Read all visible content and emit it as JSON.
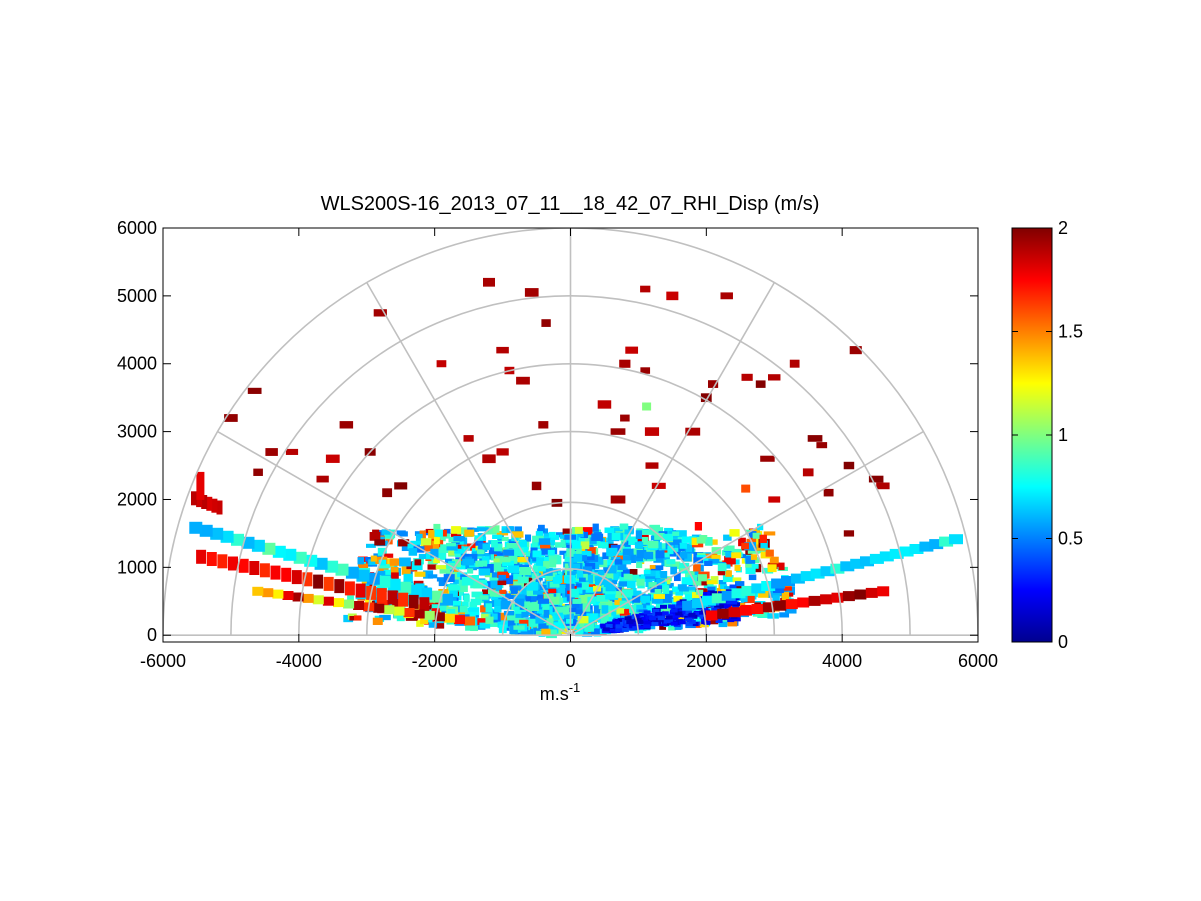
{
  "chart_data": {
    "type": "heatmap",
    "subtype": "polar-rhi-scan",
    "title": "WLS200S-16_2013_07_11__18_42_07_RHI_Disp (m/s)",
    "xlabel_base": "m.s",
    "xlabel_exp": "-1",
    "ylabel": "",
    "xlim": [
      -6000,
      6000
    ],
    "ylim": [
      -100,
      6000
    ],
    "xticks": [
      -6000,
      -4000,
      -2000,
      0,
      2000,
      4000,
      6000
    ],
    "xtick_labels": [
      "-6000",
      "-4000",
      "-2000",
      "0",
      "2000",
      "4000",
      "6000"
    ],
    "yticks": [
      0,
      1000,
      2000,
      3000,
      4000,
      5000,
      6000
    ],
    "ytick_labels": [
      "0",
      "1000",
      "2000",
      "3000",
      "4000",
      "5000",
      "6000"
    ],
    "polar_grid": {
      "range_rings": [
        1000,
        2000,
        3000,
        4000,
        5000,
        6000
      ],
      "spokes_deg": [
        0,
        30,
        60,
        90,
        120,
        150,
        180
      ]
    },
    "colorbar": {
      "colormap": "jet",
      "clim": [
        0,
        2
      ],
      "ticks": [
        0,
        0.5,
        1,
        1.5,
        2
      ],
      "tick_labels": [
        "0",
        "0.5",
        "1",
        "1.5",
        "2"
      ]
    },
    "grid": true,
    "colors": {
      "grid": "#c0c0c0",
      "axes": "#000000",
      "background": "#ffffff"
    }
  }
}
